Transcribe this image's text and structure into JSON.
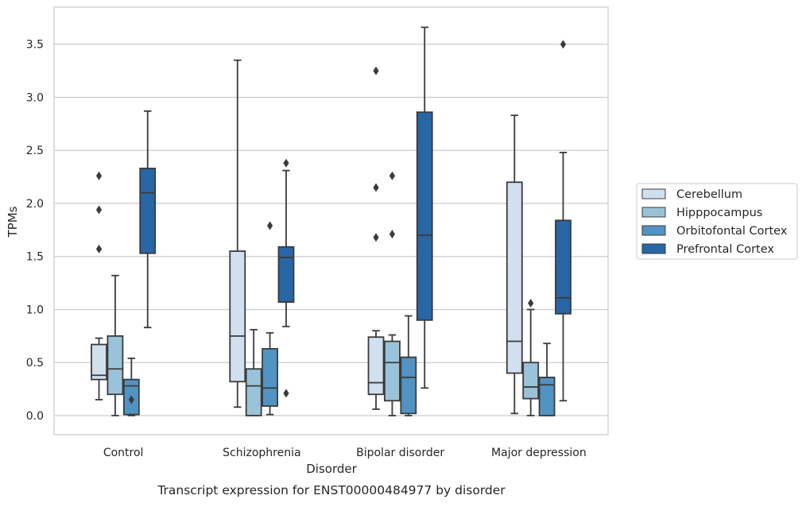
{
  "chart_data": {
    "type": "box",
    "title": "",
    "caption": "Transcript expression for ENST00000484977 by disorder",
    "xlabel": "Disorder",
    "ylabel": "TPMs",
    "ylim": [
      -0.18,
      3.85
    ],
    "yticks": [
      "0.0",
      "0.5",
      "1.0",
      "1.5",
      "2.0",
      "2.5",
      "3.0",
      "3.5"
    ],
    "ytick_values": [
      0,
      0.5,
      1.0,
      1.5,
      2.0,
      2.5,
      3.0,
      3.5
    ],
    "grid": "horizontal",
    "legend_position": "right",
    "categories": [
      "Control",
      "Schizophrenia",
      "Bipolar disorder",
      "Major depression"
    ],
    "series": [
      {
        "name": "Cerebellum",
        "color": "#d0e0ef",
        "boxes": [
          {
            "whislo": 0.15,
            "q1": 0.34,
            "med": 0.38,
            "q3": 0.67,
            "whishi": 0.73,
            "fliers": [
              1.57,
              1.94,
              2.26
            ]
          },
          {
            "whislo": 0.08,
            "q1": 0.32,
            "med": 0.75,
            "q3": 1.55,
            "whishi": 3.35,
            "fliers": []
          },
          {
            "whislo": 0.06,
            "q1": 0.2,
            "med": 0.31,
            "q3": 0.74,
            "whishi": 0.8,
            "fliers": [
              1.68,
              2.15,
              3.25
            ]
          },
          {
            "whislo": 0.02,
            "q1": 0.4,
            "med": 0.7,
            "q3": 2.2,
            "whishi": 2.83,
            "fliers": []
          }
        ]
      },
      {
        "name": "Hipppocampus",
        "color": "#9ac3da",
        "boxes": [
          {
            "whislo": 0.0,
            "q1": 0.2,
            "med": 0.44,
            "q3": 0.75,
            "whishi": 1.32,
            "fliers": []
          },
          {
            "whislo": 0.0,
            "q1": 0.0,
            "med": 0.28,
            "q3": 0.44,
            "whishi": 0.81,
            "fliers": []
          },
          {
            "whislo": 0.0,
            "q1": 0.14,
            "med": 0.5,
            "q3": 0.7,
            "whishi": 0.76,
            "fliers": [
              1.71,
              2.26
            ]
          },
          {
            "whislo": 0.0,
            "q1": 0.16,
            "med": 0.27,
            "q3": 0.5,
            "whishi": 1.0,
            "fliers": [
              1.06
            ]
          }
        ]
      },
      {
        "name": "Orbitofontal Cortex",
        "color": "#5193c2",
        "boxes": [
          {
            "whislo": 0.0,
            "q1": 0.01,
            "med": 0.28,
            "q3": 0.34,
            "whishi": 0.54,
            "fliers": [
              0.15
            ]
          },
          {
            "whislo": 0.01,
            "q1": 0.09,
            "med": 0.26,
            "q3": 0.63,
            "whishi": 0.78,
            "fliers": [
              1.79
            ]
          },
          {
            "whislo": 0.0,
            "q1": 0.02,
            "med": 0.36,
            "q3": 0.55,
            "whishi": 0.94,
            "fliers": []
          },
          {
            "whislo": 0.0,
            "q1": 0.0,
            "med": 0.29,
            "q3": 0.36,
            "whishi": 0.68,
            "fliers": []
          }
        ]
      },
      {
        "name": "Prefrontal Cortex",
        "color": "#2866a6",
        "boxes": [
          {
            "whislo": 0.83,
            "q1": 1.53,
            "med": 2.1,
            "q3": 2.33,
            "whishi": 2.87,
            "fliers": []
          },
          {
            "whislo": 0.84,
            "q1": 1.07,
            "med": 1.49,
            "q3": 1.59,
            "whishi": 2.31,
            "fliers": [
              0.21,
              2.38
            ]
          },
          {
            "whislo": 0.26,
            "q1": 0.9,
            "med": 1.7,
            "q3": 2.86,
            "whishi": 3.66,
            "fliers": []
          },
          {
            "whislo": 0.14,
            "q1": 0.96,
            "med": 1.11,
            "q3": 1.84,
            "whishi": 2.48,
            "fliers": [
              3.5
            ]
          }
        ]
      }
    ]
  }
}
